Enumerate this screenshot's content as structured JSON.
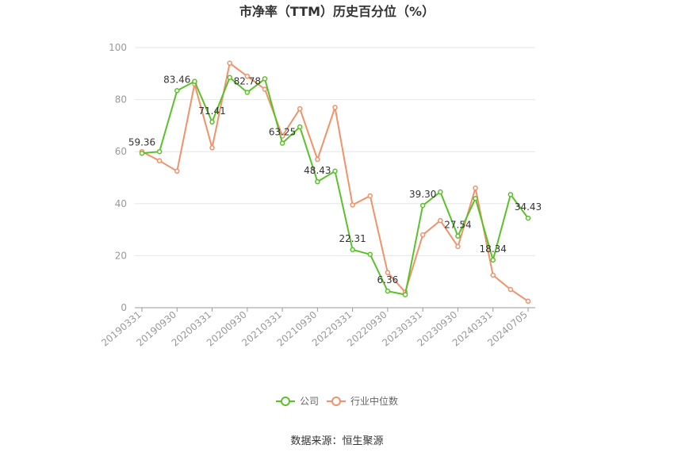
{
  "chart_data": {
    "type": "line",
    "title": "市净率（TTM）历史百分位（%）",
    "source": "数据来源：恒生聚源",
    "ylim": [
      0,
      100
    ],
    "yticks": [
      0,
      20,
      40,
      60,
      80,
      100
    ],
    "x_tick_labels": [
      "20190331",
      "20190930",
      "20200331",
      "20200930",
      "20210331",
      "20210930",
      "20220331",
      "20220930",
      "20230331",
      "20230930",
      "20240331",
      "20240705"
    ],
    "grid": true,
    "legend_position": "bottom-center",
    "x": [
      "20190331",
      "20190630",
      "20190930",
      "20191231",
      "20200331",
      "20200630",
      "20200930",
      "20201231",
      "20210331",
      "20210630",
      "20210930",
      "20211231",
      "20220331",
      "20220630",
      "20220930",
      "20221231",
      "20230331",
      "20230630",
      "20230930",
      "20231231",
      "20240331",
      "20240630",
      "20240705"
    ],
    "series": [
      {
        "name": "公司",
        "color": "#5ac229",
        "values": [
          59.36,
          60.0,
          83.46,
          87.0,
          71.41,
          88.5,
          82.78,
          88.0,
          63.25,
          69.5,
          48.43,
          52.5,
          22.31,
          20.5,
          6.36,
          5.0,
          39.3,
          44.5,
          27.54,
          42.0,
          18.34,
          43.5,
          34.43
        ],
        "labels": [
          "59.36",
          "",
          "83.46",
          "",
          "71.41",
          "",
          "82.78",
          "",
          "63.25",
          "",
          "48.43",
          "",
          "22.31",
          "",
          "6.36",
          "",
          "39.30",
          "",
          "27.54",
          "",
          "18.34",
          "",
          "34.43"
        ]
      },
      {
        "name": "行业中位数",
        "color": "#f0926a",
        "values": [
          60.0,
          56.5,
          52.5,
          86.0,
          61.5,
          94.0,
          89.0,
          84.0,
          66.0,
          76.5,
          57.0,
          77.0,
          39.5,
          43.0,
          13.5,
          6.0,
          28.0,
          33.5,
          23.5,
          46.0,
          12.5,
          7.0,
          2.5
        ]
      }
    ]
  }
}
